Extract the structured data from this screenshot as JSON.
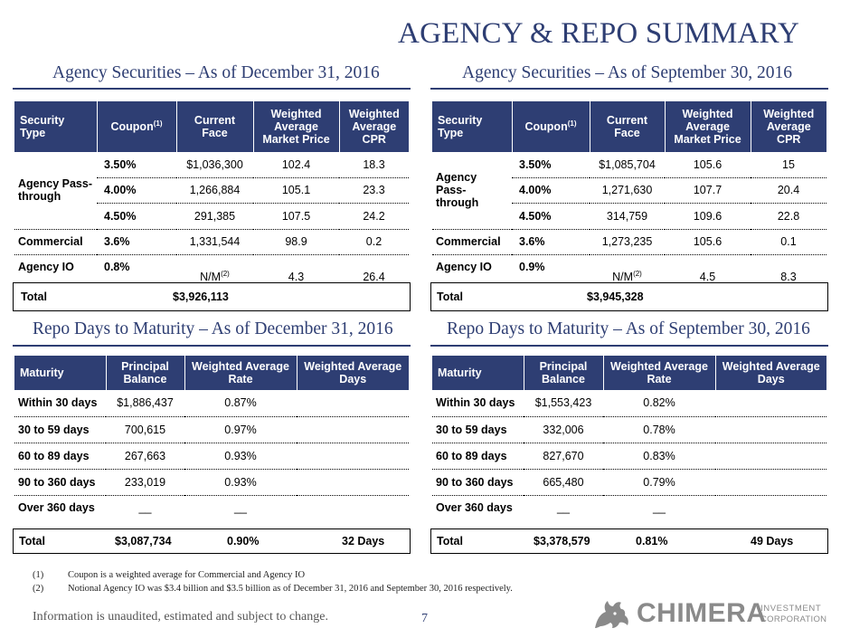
{
  "page_title": "AGENCY & REPO SUMMARY",
  "sections": {
    "agency_dec": "Agency Securities – As of December 31, 2016",
    "agency_sep": "Agency Securities – As of September 30, 2016",
    "repo_dec": "Repo Days to Maturity – As of December 31, 2016",
    "repo_sep": "Repo Days to Maturity – As of September 30, 2016"
  },
  "agency_headers": {
    "security_type": "Security Type",
    "coupon": "Coupon",
    "coupon_sup": "(1)",
    "current_face": "Current Face",
    "wamp": "Weighted Average Market Price",
    "wacpr": "Weighted Average CPR"
  },
  "agency_labels": {
    "pass_through": "Agency Pass-through",
    "commercial": "Commercial",
    "agency_io": "Agency IO",
    "nm": "N/M",
    "nm_sup": "(2)",
    "total": "Total"
  },
  "agency_dec": {
    "rows": [
      {
        "coupon": "3.50%",
        "face": "$1,036,300",
        "price": "102.4",
        "cpr": "18.3"
      },
      {
        "coupon": "4.00%",
        "face": "1,266,884",
        "price": "105.1",
        "cpr": "23.3"
      },
      {
        "coupon": "4.50%",
        "face": "291,385",
        "price": "107.5",
        "cpr": "24.2"
      }
    ],
    "commercial": {
      "coupon": "3.6%",
      "face": "1,331,544",
      "price": "98.9",
      "cpr": "0.2"
    },
    "io": {
      "coupon": "0.8%",
      "price": "4.3",
      "cpr": "26.4"
    },
    "total": "$3,926,113"
  },
  "agency_sep": {
    "rows": [
      {
        "coupon": "3.50%",
        "face": "$1,085,704",
        "price": "105.6",
        "cpr": "15"
      },
      {
        "coupon": "4.00%",
        "face": "1,271,630",
        "price": "107.7",
        "cpr": "20.4"
      },
      {
        "coupon": "4.50%",
        "face": "314,759",
        "price": "109.6",
        "cpr": "22.8"
      }
    ],
    "commercial": {
      "coupon": "3.6%",
      "face": "1,273,235",
      "price": "105.6",
      "cpr": "0.1"
    },
    "io": {
      "coupon": "0.9%",
      "price": "4.5",
      "cpr": "8.3"
    },
    "total": "$3,945,328"
  },
  "repo_headers": {
    "maturity": "Maturity",
    "principal": "Principal Balance",
    "rate": "Weighted Average Rate",
    "days": "Weighted Average Days"
  },
  "repo_dec": {
    "rows": [
      {
        "maturity": "Within 30 days",
        "balance": "$1,886,437",
        "rate": "0.87%"
      },
      {
        "maturity": "30 to 59 days",
        "balance": "700,615",
        "rate": "0.97%"
      },
      {
        "maturity": "60 to 89 days",
        "balance": "267,663",
        "rate": "0.93%"
      },
      {
        "maturity": "90 to 360 days",
        "balance": "233,019",
        "rate": "0.93%"
      },
      {
        "maturity": "Over 360 days",
        "balance": "__",
        "rate": "__"
      }
    ],
    "total": {
      "label": "Total",
      "balance": "$3,087,734",
      "rate": "0.90%",
      "days": "32 Days"
    }
  },
  "repo_sep": {
    "rows": [
      {
        "maturity": "Within 30 days",
        "balance": "$1,553,423",
        "rate": "0.82%"
      },
      {
        "maturity": "30 to 59 days",
        "balance": "332,006",
        "rate": "0.78%"
      },
      {
        "maturity": "60 to 89 days",
        "balance": "827,670",
        "rate": "0.83%"
      },
      {
        "maturity": "90 to 360 days",
        "balance": "665,480",
        "rate": "0.79%"
      },
      {
        "maturity": "Over 360 days",
        "balance": "__",
        "rate": "__"
      }
    ],
    "total": {
      "label": "Total",
      "balance": "$3,378,579",
      "rate": "0.81%",
      "days": "49 Days"
    }
  },
  "footnotes": [
    {
      "num": "(1)",
      "text": "Coupon is a weighted average for Commercial and Agency IO"
    },
    {
      "num": "(2)",
      "text": "Notional Agency IO was $3.4 billion and $3.5 billion as of December 31, 2016 and September 30, 2016 respectively."
    }
  ],
  "disclaimer": "Information is unaudited, estimated and subject to change.",
  "page_number": "7",
  "logo": {
    "brand": "CHIMERA",
    "line1": "INVESTMENT",
    "line2": "CORPORATION",
    "icon": "chimera-creature-icon"
  },
  "colors": {
    "navy": "#2e3e73",
    "logo_gray": "#8a8a8a"
  }
}
